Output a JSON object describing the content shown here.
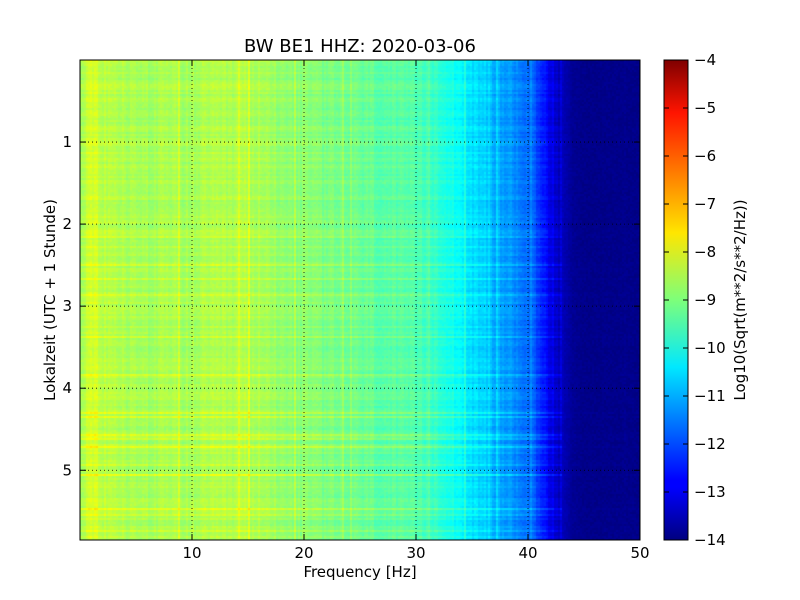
{
  "chart_data": {
    "type": "heatmap",
    "title": "BW BE1 HHZ: 2020-03-06",
    "xlabel": "Frequency [Hz]",
    "ylabel": "Lokalzeit (UTC + 1 Stunde)",
    "xlim": [
      0,
      50
    ],
    "ylim": [
      5.85,
      0
    ],
    "y_inverted": true,
    "grid": true,
    "x_ticks": [
      10,
      20,
      30,
      40,
      50
    ],
    "x_tick_labels": [
      "10",
      "20",
      "30",
      "40",
      "50"
    ],
    "y_ticks": [
      1,
      2,
      3,
      4,
      5
    ],
    "y_tick_labels": [
      "1",
      "2",
      "3",
      "4",
      "5"
    ],
    "colormap": "jet",
    "colorbar": {
      "label": "Log10(Sqrt(m**2/s**2/Hz))",
      "min": -14,
      "max": -4,
      "ticks": [
        -4,
        -5,
        -6,
        -7,
        -8,
        -9,
        -10,
        -11,
        -12,
        -13,
        -14
      ],
      "tick_labels": [
        "−4",
        "−5",
        "−6",
        "−7",
        "−8",
        "−9",
        "−10",
        "−11",
        "−12",
        "−13",
        "−14"
      ]
    },
    "frequency_profile": {
      "frequency_hz": [
        0,
        1,
        2,
        5,
        10,
        15,
        20,
        25,
        30,
        32,
        34,
        36,
        38,
        40,
        41,
        42,
        43,
        44,
        45,
        50
      ],
      "level": [
        -8.8,
        -8.1,
        -8.4,
        -8.6,
        -8.6,
        -8.5,
        -8.9,
        -9.2,
        -9.5,
        -9.7,
        -10.2,
        -10.8,
        -11.2,
        -11.6,
        -12.2,
        -13.0,
        -13.4,
        -13.8,
        -13.9,
        -13.9
      ]
    },
    "time_range_hours": [
      0,
      5.85
    ]
  }
}
